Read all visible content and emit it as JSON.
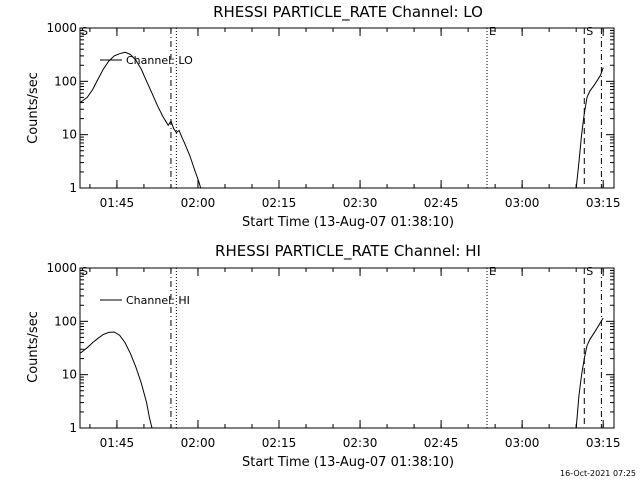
{
  "chart_data": [
    {
      "type": "line",
      "title": "RHESSI PARTICLE_RATE Channel: LO",
      "xlabel": "Start Time (13-Aug-07 01:38:10)",
      "ylabel": "Counts/sec",
      "yscale": "log",
      "ylim": [
        1,
        1000
      ],
      "xlim": [
        "01:38:10",
        "03:17:00"
      ],
      "x_ticks": [
        "01:45",
        "02:00",
        "02:15",
        "02:30",
        "02:45",
        "03:00",
        "03:15"
      ],
      "y_ticks": [
        "1",
        "10",
        "100",
        "1000"
      ],
      "legend": {
        "label": "Channel: LO",
        "placement": "top-left"
      },
      "markers": [
        {
          "time": "01:55:00",
          "style": "dash-dot",
          "label": ""
        },
        {
          "time": "01:56:00",
          "style": "dotted",
          "label": ""
        },
        {
          "time": "02:53:30",
          "style": "dotted",
          "label": "E"
        },
        {
          "time": "03:11:30",
          "style": "dashed",
          "label": "S"
        },
        {
          "time": "03:14:40",
          "style": "dash-dot",
          "label": ""
        }
      ],
      "corner_label": "S",
      "series": [
        {
          "name": "Channel: LO",
          "segments": [
            [
              [
                "01:38:10",
                40
              ],
              [
                "01:39:30",
                50
              ],
              [
                "01:40:30",
                70
              ],
              [
                "01:41:30",
                110
              ],
              [
                "01:42:30",
                170
              ],
              [
                "01:43:30",
                240
              ],
              [
                "01:44:30",
                300
              ],
              [
                "01:45:30",
                330
              ],
              [
                "01:46:30",
                350
              ],
              [
                "01:47:30",
                320
              ],
              [
                "01:48:30",
                250
              ],
              [
                "01:49:30",
                170
              ],
              [
                "01:50:30",
                100
              ],
              [
                "01:51:30",
                60
              ],
              [
                "01:52:30",
                35
              ],
              [
                "01:53:30",
                22
              ],
              [
                "01:54:30",
                15
              ],
              [
                "01:55:00",
                18
              ],
              [
                "01:55:30",
                13
              ],
              [
                "01:56:00",
                11
              ],
              [
                "01:56:30",
                12
              ],
              [
                "01:57:00",
                9
              ],
              [
                "01:57:30",
                7
              ],
              [
                "01:58:30",
                4
              ],
              [
                "01:59:30",
                2
              ],
              [
                "02:00:10",
                1.3
              ],
              [
                "02:00:30",
                1
              ]
            ],
            [
              [
                "03:10:00",
                1
              ],
              [
                "03:10:30",
                3
              ],
              [
                "03:11:00",
                10
              ],
              [
                "03:11:30",
                25
              ],
              [
                "03:12:00",
                50
              ],
              [
                "03:12:30",
                65
              ],
              [
                "03:13:30",
                90
              ],
              [
                "03:14:30",
                130
              ],
              [
                "03:15:00",
                180
              ]
            ]
          ]
        }
      ]
    },
    {
      "type": "line",
      "title": "RHESSI PARTICLE_RATE Channel: HI",
      "xlabel": "Start Time (13-Aug-07 01:38:10)",
      "ylabel": "Counts/sec",
      "yscale": "log",
      "ylim": [
        1,
        1000
      ],
      "xlim": [
        "01:38:10",
        "03:17:00"
      ],
      "x_ticks": [
        "01:45",
        "02:00",
        "02:15",
        "02:30",
        "02:45",
        "03:00",
        "03:15"
      ],
      "y_ticks": [
        "1",
        "10",
        "100",
        "1000"
      ],
      "legend": {
        "label": "Channel: HI",
        "placement": "top-left"
      },
      "markers": [
        {
          "time": "01:55:00",
          "style": "dash-dot",
          "label": ""
        },
        {
          "time": "01:56:00",
          "style": "dotted",
          "label": ""
        },
        {
          "time": "02:53:30",
          "style": "dotted",
          "label": "E"
        },
        {
          "time": "03:11:30",
          "style": "dashed",
          "label": "S"
        },
        {
          "time": "03:14:40",
          "style": "dash-dot",
          "label": ""
        }
      ],
      "corner_label": "S",
      "series": [
        {
          "name": "Channel: HI",
          "segments": [
            [
              [
                "01:38:10",
                25
              ],
              [
                "01:39:30",
                32
              ],
              [
                "01:40:30",
                40
              ],
              [
                "01:41:30",
                48
              ],
              [
                "01:42:30",
                57
              ],
              [
                "01:43:30",
                62
              ],
              [
                "01:44:30",
                63
              ],
              [
                "01:45:30",
                55
              ],
              [
                "01:46:30",
                40
              ],
              [
                "01:47:30",
                25
              ],
              [
                "01:48:30",
                14
              ],
              [
                "01:49:30",
                7
              ],
              [
                "01:50:30",
                3
              ],
              [
                "01:51:00",
                1.6
              ],
              [
                "01:51:30",
                1
              ]
            ],
            [
              [
                "03:10:00",
                1
              ],
              [
                "03:10:30",
                4
              ],
              [
                "03:11:00",
                10
              ],
              [
                "03:11:30",
                20
              ],
              [
                "03:12:00",
                35
              ],
              [
                "03:12:30",
                45
              ],
              [
                "03:13:30",
                65
              ],
              [
                "03:14:30",
                95
              ],
              [
                "03:15:00",
                115
              ]
            ]
          ]
        }
      ]
    }
  ],
  "footer": {
    "timestamp": "16-Oct-2021 07:25"
  }
}
